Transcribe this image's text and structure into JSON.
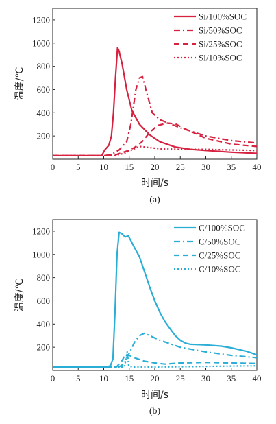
{
  "chart_data": [
    {
      "type": "line",
      "panel_label": "(a)",
      "xlabel": "时间/s",
      "ylabel": "温度/℃",
      "xlim": [
        0,
        40
      ],
      "ylim": [
        0,
        1300
      ],
      "xticks": [
        0,
        5,
        10,
        15,
        20,
        25,
        30,
        35,
        40
      ],
      "yticks": [
        200,
        400,
        600,
        800,
        1000,
        1200
      ],
      "color": "#d6213f",
      "legend_position": "top-right",
      "series": [
        {
          "name": "Si/100%SOC",
          "style": "solid",
          "points": [
            [
              0,
              30
            ],
            [
              9.6,
              30
            ],
            [
              10.2,
              80
            ],
            [
              11,
              120
            ],
            [
              11.5,
              200
            ],
            [
              11.9,
              400
            ],
            [
              12.3,
              700
            ],
            [
              12.7,
              960
            ],
            [
              13.0,
              930
            ],
            [
              13.6,
              820
            ],
            [
              14.5,
              600
            ],
            [
              15.5,
              420
            ],
            [
              17,
              300
            ],
            [
              19,
              210
            ],
            [
              21,
              150
            ],
            [
              24,
              105
            ],
            [
              27,
              85
            ],
            [
              30,
              75
            ],
            [
              35,
              60
            ],
            [
              40,
              50
            ]
          ]
        },
        {
          "name": "Si/50%SOC",
          "style": "dashdot",
          "points": [
            [
              0,
              30
            ],
            [
              10,
              30
            ],
            [
              11.5,
              40
            ],
            [
              13,
              80
            ],
            [
              14.5,
              150
            ],
            [
              15.3,
              300
            ],
            [
              16.3,
              600
            ],
            [
              17,
              700
            ],
            [
              17.6,
              710
            ],
            [
              18.5,
              560
            ],
            [
              19.5,
              400
            ],
            [
              21,
              340
            ],
            [
              25,
              270
            ],
            [
              30,
              200
            ],
            [
              35,
              160
            ],
            [
              40,
              140
            ]
          ]
        },
        {
          "name": "Si/25%SOC",
          "style": "dashed",
          "points": [
            [
              0,
              30
            ],
            [
              10,
              30
            ],
            [
              12.5,
              40
            ],
            [
              14.5,
              70
            ],
            [
              16,
              100
            ],
            [
              17.5,
              150
            ],
            [
              19,
              230
            ],
            [
              20.5,
              290
            ],
            [
              22.5,
              310
            ],
            [
              24,
              305
            ],
            [
              26,
              260
            ],
            [
              30,
              180
            ],
            [
              35,
              130
            ],
            [
              40,
              110
            ]
          ]
        },
        {
          "name": "Si/10%SOC",
          "style": "dotted",
          "points": [
            [
              0,
              30
            ],
            [
              12,
              30
            ],
            [
              14,
              50
            ],
            [
              16,
              90
            ],
            [
              17,
              110
            ],
            [
              18,
              105
            ],
            [
              21,
              90
            ],
            [
              25,
              85
            ],
            [
              30,
              85
            ],
            [
              35,
              80
            ],
            [
              40,
              75
            ]
          ]
        }
      ]
    },
    {
      "type": "line",
      "panel_label": "(b)",
      "xlabel": "时间/s",
      "ylabel": "温度/℃",
      "xlim": [
        0,
        40
      ],
      "ylim": [
        0,
        1300
      ],
      "xticks": [
        0,
        5,
        10,
        15,
        20,
        25,
        30,
        35,
        40
      ],
      "yticks": [
        200,
        400,
        600,
        800,
        1000,
        1200
      ],
      "color": "#2aaed6",
      "legend_position": "top-right",
      "series": [
        {
          "name": "C/100%SOC",
          "style": "solid",
          "points": [
            [
              0,
              30
            ],
            [
              10.5,
              30
            ],
            [
              11.3,
              40
            ],
            [
              11.8,
              100
            ],
            [
              12.2,
              500
            ],
            [
              12.6,
              1000
            ],
            [
              13.0,
              1190
            ],
            [
              13.5,
              1180
            ],
            [
              14.2,
              1150
            ],
            [
              14.8,
              1160
            ],
            [
              15.3,
              1120
            ],
            [
              16,
              1060
            ],
            [
              17,
              980
            ],
            [
              18,
              850
            ],
            [
              19,
              720
            ],
            [
              20,
              600
            ],
            [
              21,
              500
            ],
            [
              22,
              420
            ],
            [
              23,
              360
            ],
            [
              24,
              300
            ],
            [
              25,
              260
            ],
            [
              26,
              235
            ],
            [
              27,
              225
            ],
            [
              30,
              220
            ],
            [
              33,
              210
            ],
            [
              35,
              195
            ],
            [
              38,
              165
            ],
            [
              40,
              135
            ]
          ]
        },
        {
          "name": "C/50%SOC",
          "style": "dashdot",
          "points": [
            [
              0,
              30
            ],
            [
              13,
              30
            ],
            [
              14,
              60
            ],
            [
              15,
              150
            ],
            [
              16,
              240
            ],
            [
              17,
              300
            ],
            [
              18,
              320
            ],
            [
              19,
              300
            ],
            [
              21,
              260
            ],
            [
              25,
              200
            ],
            [
              30,
              160
            ],
            [
              35,
              130
            ],
            [
              40,
              110
            ]
          ]
        },
        {
          "name": "C/25%SOC",
          "style": "dashed",
          "points": [
            [
              0,
              30
            ],
            [
              12.5,
              30
            ],
            [
              13.5,
              80
            ],
            [
              14.3,
              140
            ],
            [
              15,
              130
            ],
            [
              16,
              110
            ],
            [
              18,
              80
            ],
            [
              20,
              65
            ],
            [
              22,
              55
            ],
            [
              25,
              65
            ],
            [
              30,
              70
            ],
            [
              35,
              65
            ],
            [
              40,
              60
            ]
          ]
        },
        {
          "name": "C/10%SOC",
          "style": "dotted",
          "points": [
            [
              0,
              30
            ],
            [
              14,
              30
            ],
            [
              14.3,
              80
            ],
            [
              14.6,
              160
            ],
            [
              14.9,
              40
            ],
            [
              15.5,
              30
            ],
            [
              20,
              30
            ],
            [
              25,
              32
            ],
            [
              30,
              35
            ],
            [
              35,
              38
            ],
            [
              40,
              40
            ]
          ]
        }
      ]
    }
  ]
}
